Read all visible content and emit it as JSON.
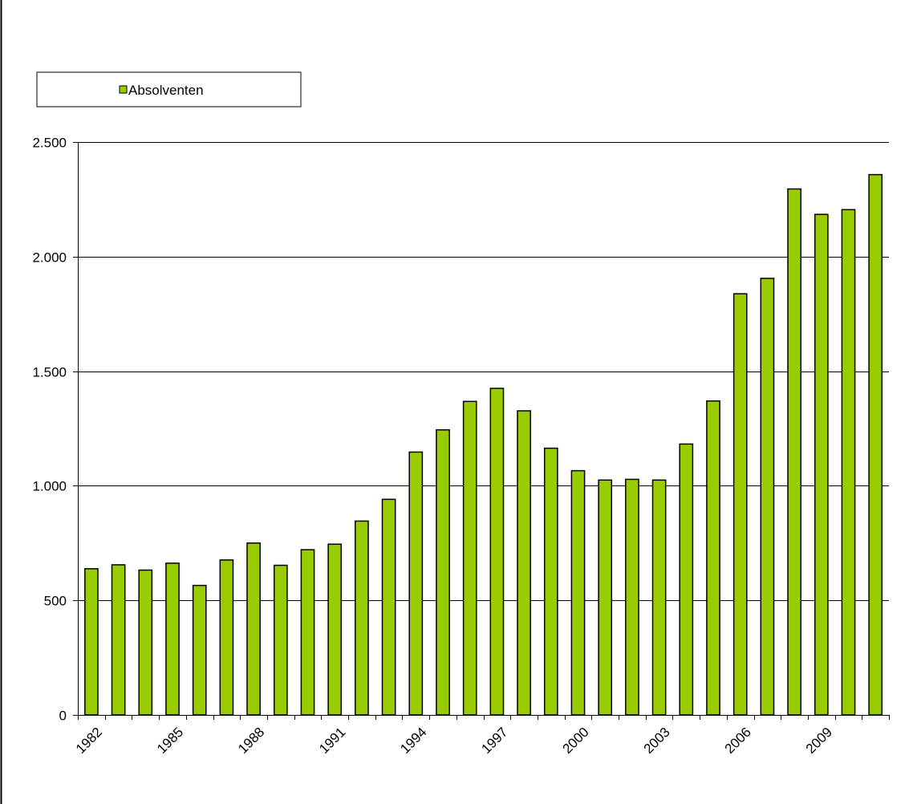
{
  "chart_data": {
    "type": "bar",
    "title": "",
    "xlabel": "",
    "ylabel": "",
    "categories": [
      "1982",
      "1983",
      "1984",
      "1985",
      "1986",
      "1987",
      "1988",
      "1989",
      "1990",
      "1991",
      "1992",
      "1993",
      "1994",
      "1995",
      "1996",
      "1997",
      "1998",
      "1999",
      "2000",
      "2001",
      "2002",
      "2003",
      "2004",
      "2005",
      "2006",
      "2007",
      "2008",
      "2009",
      "2010",
      "2011"
    ],
    "x_tick_labels": [
      "1982",
      "",
      "",
      "1985",
      "",
      "",
      "1988",
      "",
      "",
      "1991",
      "",
      "",
      "1994",
      "",
      "",
      "1997",
      "",
      "",
      "2000",
      "",
      "",
      "2003",
      "",
      "",
      "2006",
      "",
      "",
      "2009",
      "",
      ""
    ],
    "series": [
      {
        "name": "Absolventen",
        "color": "#99cc00",
        "values": [
          638,
          655,
          632,
          662,
          565,
          676,
          750,
          653,
          721,
          745,
          846,
          941,
          1147,
          1244,
          1368,
          1425,
          1327,
          1164,
          1066,
          1025,
          1028,
          1025,
          1182,
          1370,
          1838,
          1905,
          2295,
          2184,
          2205,
          2358
        ]
      }
    ],
    "y_tick_labels": [
      "0",
      "500",
      "1.000",
      "1.500",
      "2.000",
      "2.500"
    ],
    "y_ticks": [
      0,
      500,
      1000,
      1500,
      2000,
      2500
    ],
    "ylim": [
      0,
      2500
    ],
    "grid": true,
    "legend_position": "top-left"
  }
}
